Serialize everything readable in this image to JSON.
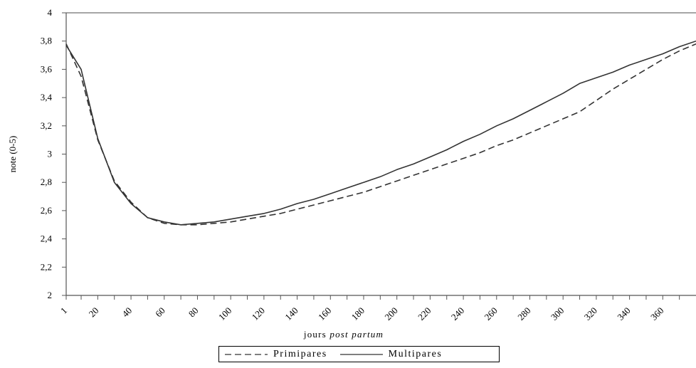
{
  "chart_data": {
    "type": "line",
    "title": "",
    "xlabel": "jours",
    "xlabel_italic": "post partum",
    "ylabel": "note (0-5)",
    "ylim": [
      2,
      4
    ],
    "xlim": [
      1,
      380
    ],
    "y_ticks": [
      "2",
      "2,2",
      "2,4",
      "2,6",
      "2,8",
      "3",
      "3,2",
      "3,4",
      "3,6",
      "3,8",
      "4"
    ],
    "x_ticks": [
      "1",
      "20",
      "40",
      "60",
      "80",
      "100",
      "120",
      "140",
      "160",
      "180",
      "200",
      "220",
      "240",
      "260",
      "280",
      "300",
      "320",
      "340",
      "360"
    ],
    "grid": false,
    "legend_position": "bottom",
    "series": [
      {
        "name": "Primipares",
        "style": "dashed",
        "color": "#333333",
        "x": [
          1,
          10,
          20,
          30,
          40,
          50,
          60,
          70,
          80,
          90,
          100,
          110,
          120,
          130,
          140,
          150,
          160,
          170,
          180,
          190,
          200,
          210,
          220,
          230,
          240,
          250,
          260,
          270,
          280,
          290,
          300,
          310,
          320,
          330,
          340,
          350,
          360,
          370,
          380
        ],
        "y": [
          3.78,
          3.55,
          3.1,
          2.81,
          2.66,
          2.55,
          2.51,
          2.5,
          2.5,
          2.51,
          2.52,
          2.54,
          2.56,
          2.58,
          2.61,
          2.64,
          2.67,
          2.7,
          2.73,
          2.77,
          2.81,
          2.85,
          2.89,
          2.93,
          2.97,
          3.01,
          3.06,
          3.1,
          3.15,
          3.2,
          3.25,
          3.3,
          3.38,
          3.46,
          3.53,
          3.6,
          3.67,
          3.73,
          3.78
        ]
      },
      {
        "name": "Multipares",
        "style": "solid",
        "color": "#333333",
        "x": [
          1,
          10,
          20,
          30,
          40,
          50,
          60,
          70,
          80,
          90,
          100,
          110,
          120,
          130,
          140,
          150,
          160,
          170,
          180,
          190,
          200,
          210,
          220,
          230,
          240,
          250,
          260,
          270,
          280,
          290,
          300,
          310,
          320,
          330,
          340,
          350,
          360,
          370,
          380
        ],
        "y": [
          3.77,
          3.6,
          3.11,
          2.8,
          2.65,
          2.55,
          2.52,
          2.5,
          2.51,
          2.52,
          2.54,
          2.56,
          2.58,
          2.61,
          2.65,
          2.68,
          2.72,
          2.76,
          2.8,
          2.84,
          2.89,
          2.93,
          2.98,
          3.03,
          3.09,
          3.14,
          3.2,
          3.25,
          3.31,
          3.37,
          3.43,
          3.5,
          3.54,
          3.58,
          3.63,
          3.67,
          3.71,
          3.76,
          3.8
        ]
      }
    ]
  },
  "legend": {
    "primipares_label": "Primipares",
    "multipares_label": "Multipares"
  }
}
